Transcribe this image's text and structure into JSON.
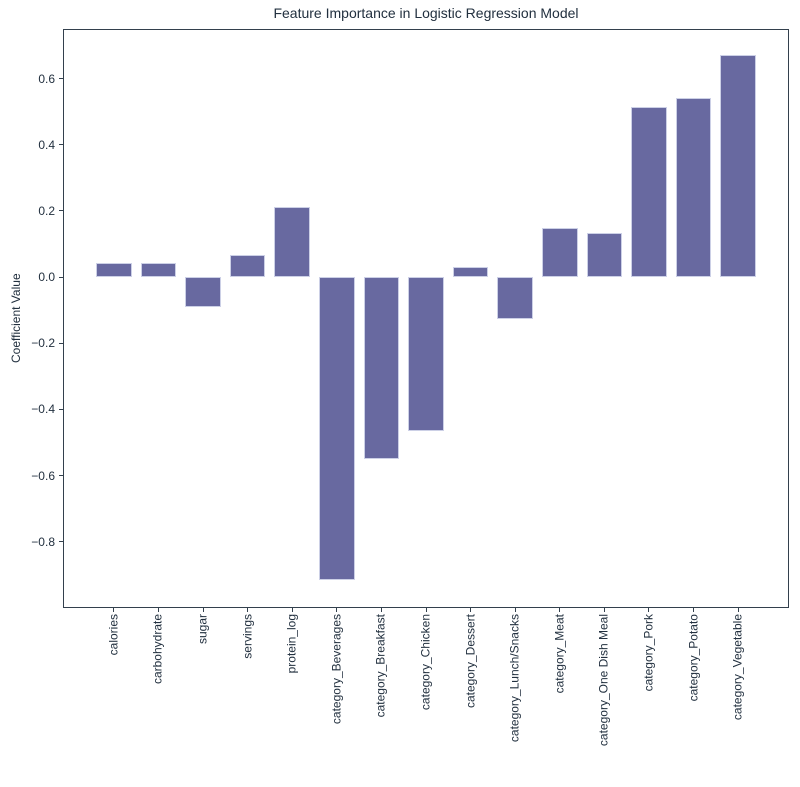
{
  "chart_data": {
    "type": "bar",
    "title": "Feature Importance in Logistic Regression Model",
    "xlabel": "",
    "ylabel": "Coefficient Value",
    "categories": [
      "calories",
      "carbohydrate",
      "sugar",
      "servings",
      "protein_log",
      "category_Beverages",
      "category_Breakfast",
      "category_Chicken",
      "category_Dessert",
      "category_Lunch/Snacks",
      "category_Meat",
      "category_One Dish Meal",
      "category_Pork",
      "category_Potato",
      "category_Vegetable"
    ],
    "values": [
      0.042,
      0.044,
      -0.089,
      0.068,
      0.212,
      -0.915,
      -0.549,
      -0.466,
      0.031,
      -0.128,
      0.149,
      0.133,
      0.513,
      0.54,
      0.67
    ],
    "ylim": [
      -1.0,
      0.75
    ],
    "xlim": [
      -1.14,
      15.14
    ],
    "bar_width": 0.8,
    "ytick_values": [
      0.6,
      0.4,
      0.2,
      0.0,
      -0.2,
      -0.4,
      -0.6,
      -0.8
    ],
    "ytick_labels": [
      "0.6",
      "0.4",
      "0.2",
      "0.0",
      "−0.2",
      "−0.4",
      "−0.6",
      "−0.8"
    ],
    "xtick_rotation": 90,
    "grid": false,
    "legend": "none",
    "colors": {
      "bar_fill": "#6869a0",
      "bar_edge": "#ccd0e6",
      "spine": "#33404d",
      "text": "#22303f",
      "background": "#ffffff"
    }
  }
}
